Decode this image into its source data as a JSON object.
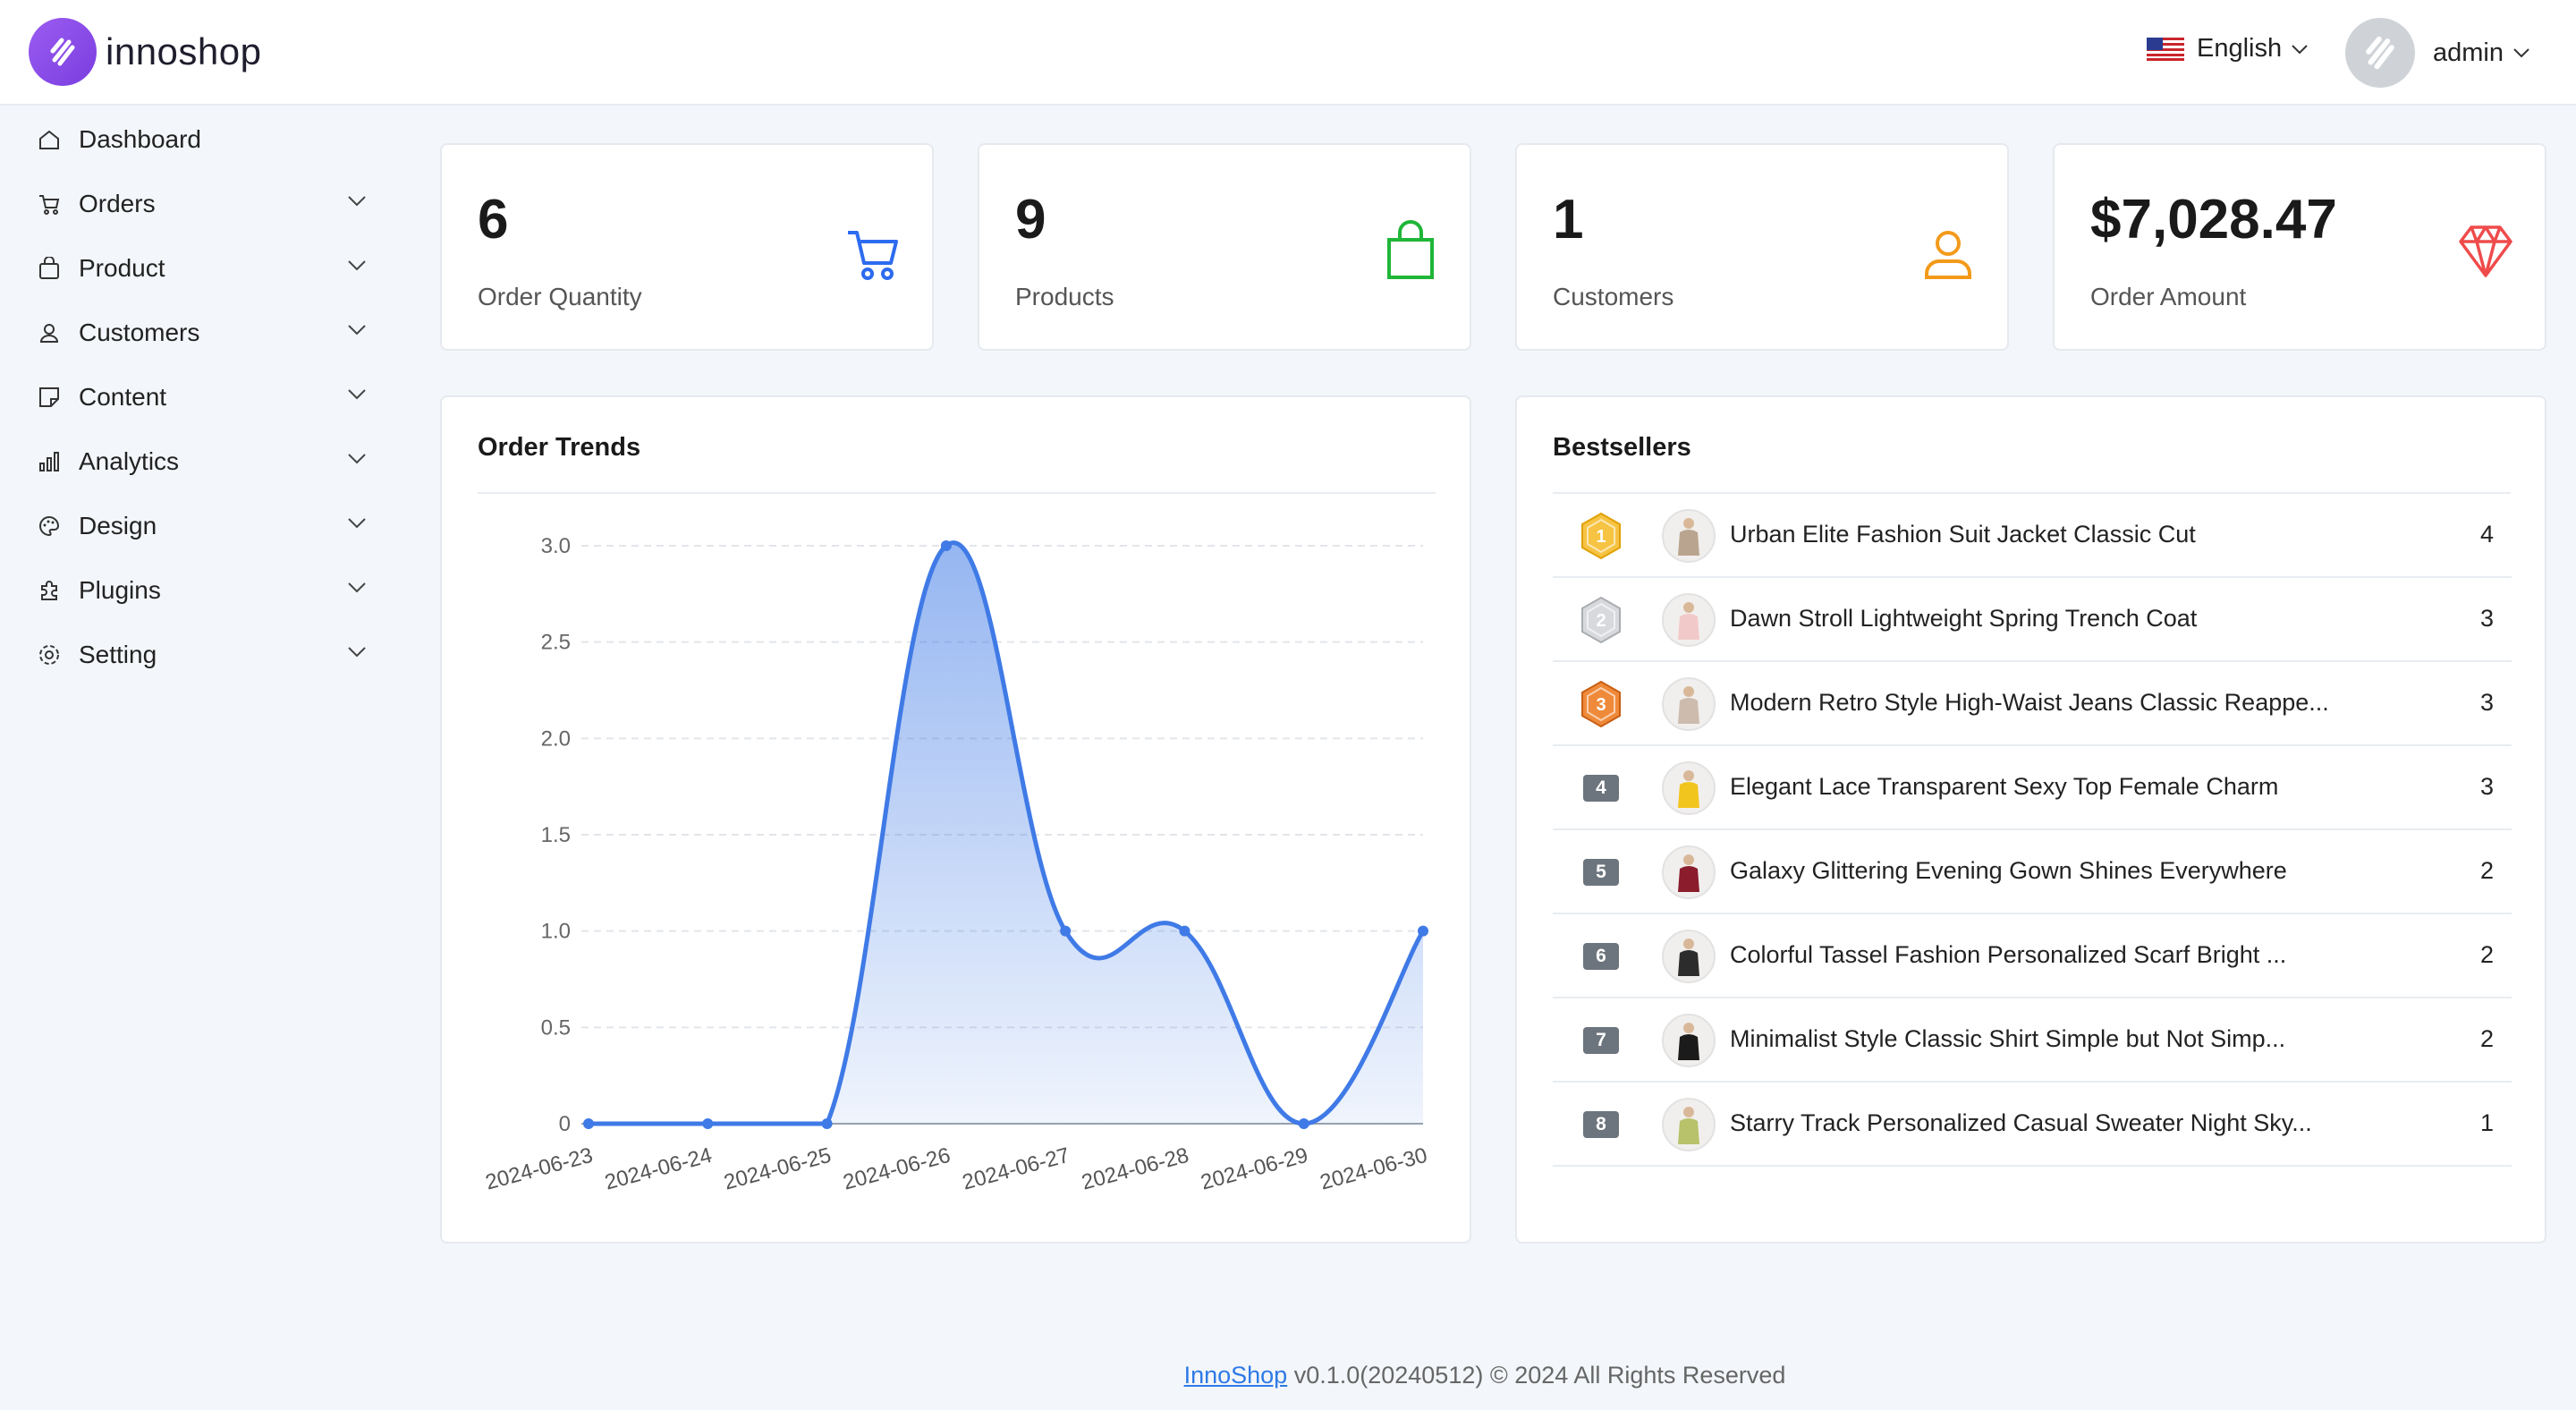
{
  "brand": {
    "name": "innoshop"
  },
  "header": {
    "language": "English",
    "user": "admin"
  },
  "sidebar": {
    "items": [
      {
        "label": "Dashboard",
        "icon": "home-icon"
      },
      {
        "label": "Orders",
        "icon": "cart-icon"
      },
      {
        "label": "Product",
        "icon": "bag-icon"
      },
      {
        "label": "Customers",
        "icon": "user-icon"
      },
      {
        "label": "Content",
        "icon": "note-icon"
      },
      {
        "label": "Analytics",
        "icon": "bar-chart-icon"
      },
      {
        "label": "Design",
        "icon": "palette-icon"
      },
      {
        "label": "Plugins",
        "icon": "plugin-icon"
      },
      {
        "label": "Setting",
        "icon": "gear-icon"
      }
    ]
  },
  "stats": [
    {
      "value": "6",
      "label": "Order Quantity",
      "color": "#2d6bf0"
    },
    {
      "value": "9",
      "label": "Products",
      "color": "#1fb638"
    },
    {
      "value": "1",
      "label": "Customers",
      "color": "#f39a1a"
    },
    {
      "value": "$7,028.47",
      "label": "Order Amount",
      "color": "#ef4b4b"
    }
  ],
  "order_trends": {
    "title": "Order Trends"
  },
  "chart_data": {
    "type": "area",
    "x": [
      "2024-06-23",
      "2024-06-24",
      "2024-06-25",
      "2024-06-26",
      "2024-06-27",
      "2024-06-28",
      "2024-06-29",
      "2024-06-30"
    ],
    "values": [
      0,
      0,
      0,
      3,
      1,
      1,
      0,
      1
    ],
    "yticks": [
      "0",
      "0.5",
      "1.0",
      "1.5",
      "2.0",
      "2.5",
      "3.0"
    ],
    "ylim": [
      0,
      3
    ],
    "smooth": true,
    "grid": "dashed horizontal",
    "color": "#3f7ae6"
  },
  "bestsellers": {
    "title": "Bestsellers",
    "items": [
      {
        "rank": "1",
        "name": "Urban Elite Fashion Suit Jacket Classic Cut",
        "qty": "4"
      },
      {
        "rank": "2",
        "name": "Dawn Stroll Lightweight Spring Trench Coat",
        "qty": "3"
      },
      {
        "rank": "3",
        "name": "Modern Retro Style High-Waist Jeans Classic Reappe...",
        "qty": "3"
      },
      {
        "rank": "4",
        "name": "Elegant Lace Transparent Sexy Top Female Charm",
        "qty": "3"
      },
      {
        "rank": "5",
        "name": "Galaxy Glittering Evening Gown Shines Everywhere",
        "qty": "2"
      },
      {
        "rank": "6",
        "name": "Colorful Tassel Fashion Personalized Scarf Bright ...",
        "qty": "2"
      },
      {
        "rank": "7",
        "name": "Minimalist Style Classic Shirt Simple but Not Simp...",
        "qty": "2"
      },
      {
        "rank": "8",
        "name": "Starry Track Personalized Casual Sweater Night Sky...",
        "qty": "1"
      }
    ]
  },
  "footer": {
    "link": "InnoShop",
    "text": " v0.1.0(20240512) © 2024 All Rights Reserved"
  }
}
